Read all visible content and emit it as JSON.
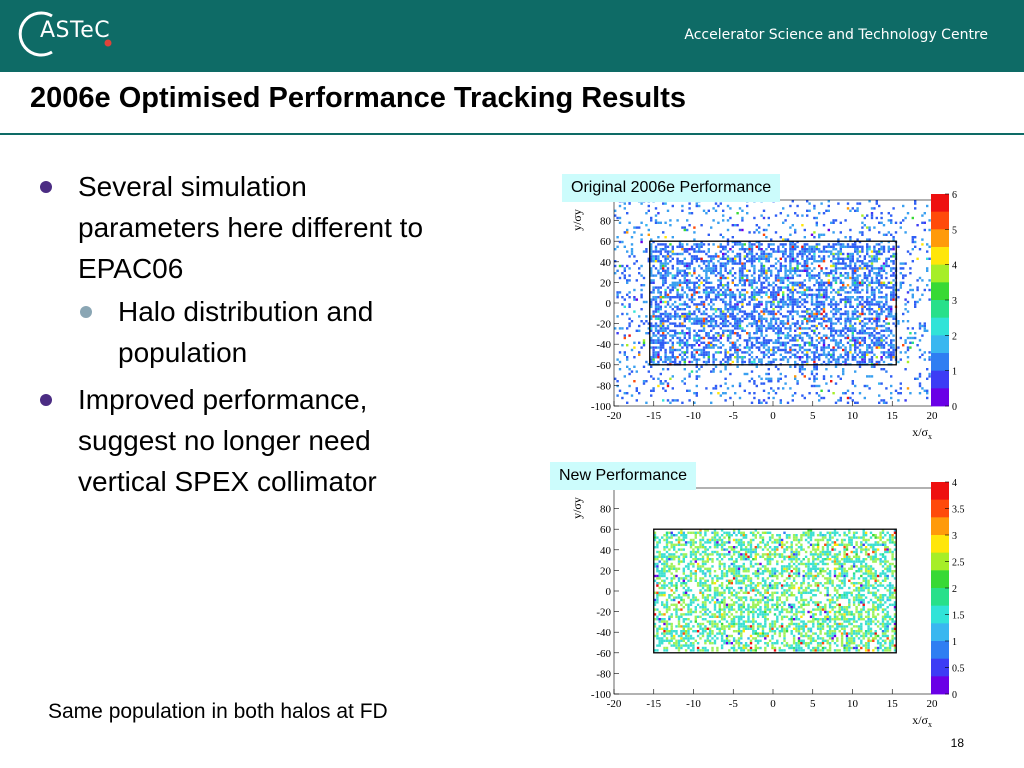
{
  "header": {
    "logo_text": "ASTeC",
    "org_name": "Accelerator Science and Technology Centre",
    "brand_color": "#0e6b66",
    "logo_dot_color": "#e0433a"
  },
  "title": "2006e Optimised Performance Tracking Results",
  "bullets": [
    {
      "text": "Several simulation parameters here different to EPAC06",
      "sub": [
        "Halo distribution and population"
      ]
    },
    {
      "text": "Improved performance, suggest no longer need vertical SPEX collimator",
      "sub": []
    }
  ],
  "footnote": "Same population in both halos at FD",
  "page_number": "18",
  "chart_data": [
    {
      "type": "heatmap",
      "label": "Original 2006e Performance",
      "xlabel": "x/σx",
      "ylabel": "y/σy",
      "xlim": [
        -20,
        20
      ],
      "ylim": [
        -100,
        100
      ],
      "x_ticks": [
        -20,
        -15,
        -10,
        -5,
        0,
        5,
        10,
        15,
        20
      ],
      "y_ticks": [
        -100,
        -80,
        -60,
        -40,
        -20,
        0,
        20,
        40,
        60,
        80
      ],
      "colorbar": {
        "range": [
          0,
          6
        ],
        "ticks": [
          0,
          1,
          2,
          3,
          4,
          5,
          6
        ]
      },
      "box": {
        "x": [
          -15.5,
          15.5
        ],
        "y": [
          -60,
          60
        ]
      },
      "halo_extent": {
        "x": [
          -20,
          20
        ],
        "y": [
          -100,
          100
        ]
      },
      "dominant_colors": [
        "#2f5ef5",
        "#39a0f0"
      ],
      "seed": 7
    },
    {
      "type": "heatmap",
      "label": "New Performance",
      "xlabel": "x/σx",
      "ylabel": "y/σy",
      "xlim": [
        -20,
        20
      ],
      "ylim": [
        -100,
        100
      ],
      "x_ticks": [
        -20,
        -15,
        -10,
        -5,
        0,
        5,
        10,
        15,
        20
      ],
      "y_ticks": [
        -100,
        -80,
        -60,
        -40,
        -20,
        0,
        20,
        40,
        60,
        80
      ],
      "colorbar": {
        "range": [
          0,
          4
        ],
        "ticks": [
          0,
          0.5,
          1,
          1.5,
          2,
          2.5,
          3,
          3.5,
          4
        ]
      },
      "box": {
        "x": [
          -15,
          15.5
        ],
        "y": [
          -60,
          60
        ]
      },
      "halo_extent": {
        "x": [
          -15,
          15.5
        ],
        "y": [
          -60,
          60
        ]
      },
      "dominant_colors": [
        "#3ce0d2",
        "#9ff25a"
      ],
      "seed": 13
    }
  ]
}
